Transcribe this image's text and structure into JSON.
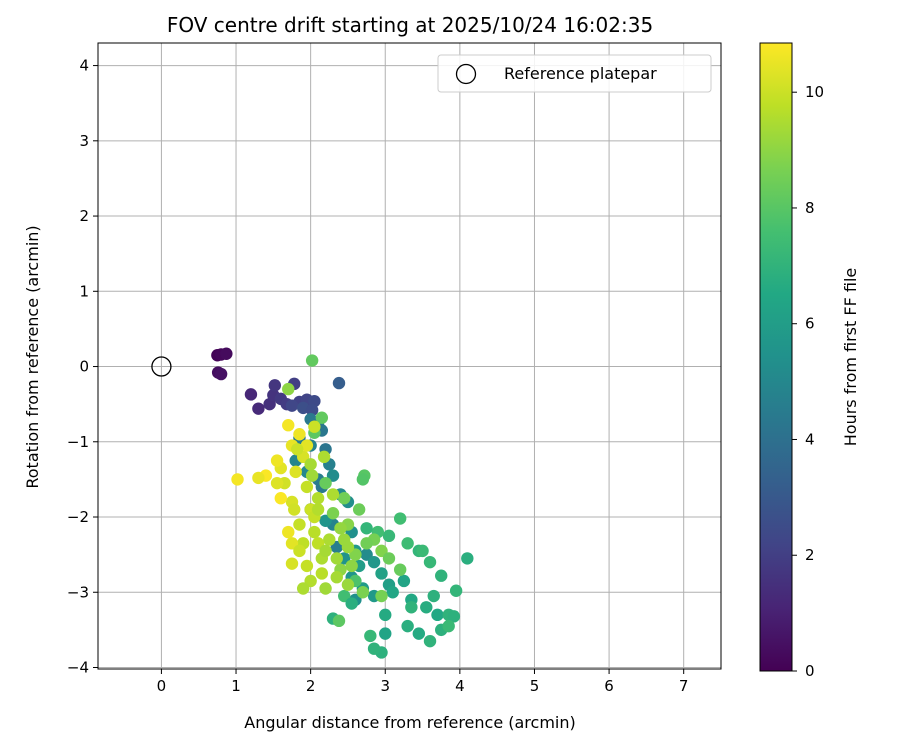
{
  "chart_data": {
    "type": "scatter",
    "title": "FOV centre drift starting at 2025/10/24 16:02:35",
    "xlabel": "Angular distance from reference (arcmin)",
    "ylabel": "Rotation from reference (arcmin)",
    "xlim": [
      -0.85,
      7.5
    ],
    "ylim": [
      -4.02,
      4.3
    ],
    "xticks": [
      0,
      1,
      2,
      3,
      4,
      5,
      6,
      7
    ],
    "yticks": [
      -4,
      -3,
      -2,
      -1,
      0,
      1,
      2,
      3,
      4
    ],
    "grid": true,
    "legend": {
      "location": "top-right",
      "entries": [
        "Reference platepar"
      ]
    },
    "reference_point": {
      "x": 0,
      "y": 0
    },
    "colorbar": {
      "label": "Hours from first FF file",
      "colormap": "viridis",
      "range": [
        0,
        10.85
      ],
      "ticks": [
        0,
        2,
        4,
        6,
        8,
        10
      ]
    },
    "series": [
      {
        "points": [
          [
            0.75,
            0.15,
            0.1
          ],
          [
            0.8,
            0.16,
            0.2
          ],
          [
            0.87,
            0.17,
            0.3
          ],
          [
            0.76,
            -0.08,
            0.4
          ],
          [
            0.8,
            -0.1,
            0.5
          ],
          [
            1.2,
            -0.37,
            1.2
          ],
          [
            1.3,
            -0.56,
            1.3
          ],
          [
            1.45,
            -0.5,
            1.5
          ],
          [
            1.5,
            -0.38,
            1.6
          ],
          [
            1.52,
            -0.25,
            1.7
          ],
          [
            1.6,
            -0.43,
            1.8
          ],
          [
            1.68,
            -0.5,
            1.9
          ],
          [
            1.78,
            -0.23,
            2.0
          ],
          [
            1.85,
            -0.47,
            2.1
          ],
          [
            1.95,
            -0.44,
            2.2
          ],
          [
            1.75,
            -0.52,
            2.3
          ],
          [
            2.05,
            -0.46,
            2.4
          ],
          [
            2.38,
            -0.22,
            3.2
          ],
          [
            1.9,
            -0.55,
            2.6
          ],
          [
            2.02,
            -0.58,
            2.5
          ],
          [
            2.0,
            -0.7,
            4.4
          ],
          [
            2.1,
            -0.78,
            4.6
          ],
          [
            2.15,
            -0.85,
            4.3
          ],
          [
            1.85,
            -0.95,
            4.5
          ],
          [
            2.0,
            -1.05,
            4.8
          ],
          [
            2.2,
            -1.1,
            4.2
          ],
          [
            2.25,
            -1.3,
            4.7
          ],
          [
            1.8,
            -1.25,
            4.9
          ],
          [
            1.95,
            -1.4,
            5.0
          ],
          [
            2.1,
            -1.5,
            4.6
          ],
          [
            2.3,
            -1.45,
            5.2
          ],
          [
            2.15,
            -1.6,
            4.4
          ],
          [
            2.4,
            -1.7,
            5.1
          ],
          [
            2.5,
            -1.8,
            5.3
          ],
          [
            2.3,
            -2.1,
            4.8
          ],
          [
            2.0,
            -1.9,
            5.0
          ],
          [
            2.2,
            -2.05,
            5.6
          ],
          [
            2.55,
            -2.2,
            5.4
          ],
          [
            2.35,
            -2.4,
            4.6
          ],
          [
            2.6,
            -2.45,
            5.8
          ],
          [
            2.45,
            -2.55,
            5.5
          ],
          [
            2.75,
            -2.5,
            5.2
          ],
          [
            2.65,
            -2.65,
            6.0
          ],
          [
            2.85,
            -2.6,
            5.7
          ],
          [
            2.55,
            -2.8,
            5.6
          ],
          [
            2.95,
            -2.75,
            6.2
          ],
          [
            2.7,
            -2.95,
            5.9
          ],
          [
            3.05,
            -2.9,
            6.1
          ],
          [
            2.6,
            -3.1,
            5.4
          ],
          [
            2.85,
            -3.05,
            5.8
          ],
          [
            3.25,
            -2.85,
            6.3
          ],
          [
            3.1,
            -3.0,
            6.4
          ],
          [
            3.35,
            -3.1,
            6.5
          ],
          [
            3.0,
            -3.3,
            6.6
          ],
          [
            3.55,
            -3.2,
            6.7
          ],
          [
            3.3,
            -3.45,
            6.8
          ],
          [
            3.7,
            -3.3,
            6.5
          ],
          [
            3.45,
            -3.55,
            6.6
          ],
          [
            3.75,
            -3.5,
            6.9
          ],
          [
            3.6,
            -3.65,
            7.0
          ],
          [
            3.85,
            -3.3,
            7.0
          ],
          [
            3.92,
            -3.32,
            6.9
          ],
          [
            3.95,
            -2.98,
            7.1
          ],
          [
            4.1,
            -2.55,
            6.8
          ],
          [
            3.75,
            -2.78,
            7.0
          ],
          [
            3.6,
            -2.6,
            7.2
          ],
          [
            3.45,
            -2.45,
            7.1
          ],
          [
            3.3,
            -2.35,
            7.4
          ],
          [
            3.2,
            -2.02,
            7.5
          ],
          [
            3.5,
            -2.45,
            7.3
          ],
          [
            3.05,
            -2.25,
            7.2
          ],
          [
            2.9,
            -2.2,
            7.5
          ],
          [
            2.75,
            -2.15,
            7.1
          ],
          [
            3.0,
            -3.55,
            6.3
          ],
          [
            2.95,
            -3.8,
            6.9
          ],
          [
            2.8,
            -3.58,
            7.2
          ],
          [
            2.85,
            -3.75,
            7.0
          ],
          [
            3.35,
            -3.2,
            7.0
          ],
          [
            3.65,
            -3.05,
            6.9
          ],
          [
            3.85,
            -3.45,
            7.3
          ],
          [
            2.45,
            -3.05,
            7.5
          ],
          [
            2.6,
            -2.85,
            7.8
          ],
          [
            2.55,
            -3.15,
            6.8
          ],
          [
            2.3,
            -3.35,
            6.9
          ],
          [
            2.38,
            -3.38,
            8.1
          ],
          [
            2.02,
            0.08,
            8.2
          ],
          [
            2.72,
            -1.45,
            8.0
          ],
          [
            2.7,
            -1.5,
            7.9
          ],
          [
            2.15,
            -0.68,
            8.2
          ],
          [
            2.05,
            -0.88,
            8.1
          ],
          [
            1.7,
            -0.3,
            9.0
          ],
          [
            2.2,
            -1.55,
            8.3
          ],
          [
            2.45,
            -1.75,
            8.5
          ],
          [
            2.65,
            -1.9,
            8.4
          ],
          [
            2.85,
            -2.3,
            8.6
          ],
          [
            2.95,
            -2.45,
            8.8
          ],
          [
            2.3,
            -1.95,
            8.7
          ],
          [
            2.5,
            -2.1,
            8.9
          ],
          [
            2.75,
            -2.35,
            8.5
          ],
          [
            3.05,
            -2.55,
            8.4
          ],
          [
            3.2,
            -2.7,
            8.3
          ],
          [
            2.6,
            -2.5,
            8.8
          ],
          [
            2.4,
            -2.7,
            9.0
          ],
          [
            2.7,
            -3.0,
            8.7
          ],
          [
            2.95,
            -3.05,
            8.6
          ],
          [
            2.5,
            -2.9,
            9.2
          ],
          [
            2.35,
            -2.8,
            9.4
          ],
          [
            2.2,
            -2.95,
            9.3
          ],
          [
            2.0,
            -2.85,
            9.6
          ],
          [
            2.15,
            -2.55,
            9.5
          ],
          [
            1.9,
            -2.35,
            9.8
          ],
          [
            2.05,
            -2.2,
            9.7
          ],
          [
            2.25,
            -2.3,
            9.5
          ],
          [
            1.85,
            -2.1,
            9.9
          ],
          [
            2.0,
            -1.9,
            10.0
          ],
          [
            2.1,
            -1.75,
            9.6
          ],
          [
            1.75,
            -1.8,
            10.2
          ],
          [
            1.65,
            -1.55,
            10.1
          ],
          [
            1.95,
            -1.6,
            9.9
          ],
          [
            1.8,
            -1.4,
            10.3
          ],
          [
            1.6,
            -1.35,
            10.4
          ],
          [
            1.9,
            -1.2,
            10.2
          ],
          [
            1.75,
            -1.05,
            10.5
          ],
          [
            1.85,
            -0.9,
            10.6
          ],
          [
            2.05,
            -0.8,
            10.0
          ],
          [
            1.7,
            -0.78,
            10.7
          ],
          [
            1.95,
            -1.05,
            10.4
          ],
          [
            1.55,
            -1.25,
            10.6
          ],
          [
            1.4,
            -1.45,
            10.8
          ],
          [
            1.3,
            -1.48,
            10.5
          ],
          [
            1.02,
            -1.5,
            10.7
          ],
          [
            1.55,
            -1.55,
            10.3
          ],
          [
            1.6,
            -1.75,
            10.8
          ],
          [
            1.78,
            -1.9,
            10.1
          ],
          [
            1.75,
            -2.35,
            10.4
          ],
          [
            1.7,
            -2.2,
            10.6
          ],
          [
            1.75,
            -2.62,
            10.2
          ],
          [
            1.85,
            -2.45,
            10.0
          ],
          [
            2.1,
            -2.35,
            9.8
          ],
          [
            1.95,
            -2.65,
            9.9
          ],
          [
            2.15,
            -2.75,
            9.7
          ],
          [
            2.05,
            -2.0,
            9.9
          ],
          [
            2.2,
            -2.45,
            9.4
          ],
          [
            2.35,
            -2.55,
            9.3
          ],
          [
            2.5,
            -2.4,
            9.2
          ],
          [
            1.9,
            -2.95,
            9.5
          ],
          [
            2.1,
            -1.9,
            9.6
          ],
          [
            2.4,
            -2.15,
            9.1
          ],
          [
            2.55,
            -2.65,
            9.0
          ],
          [
            2.45,
            -2.3,
            9.2
          ],
          [
            2.3,
            -1.7,
            9.5
          ],
          [
            2.0,
            -1.3,
            9.4
          ],
          [
            2.18,
            -1.2,
            9.5
          ],
          [
            1.82,
            -1.1,
            10.0
          ],
          [
            2.02,
            -1.45,
            9.3
          ]
        ]
      }
    ]
  }
}
